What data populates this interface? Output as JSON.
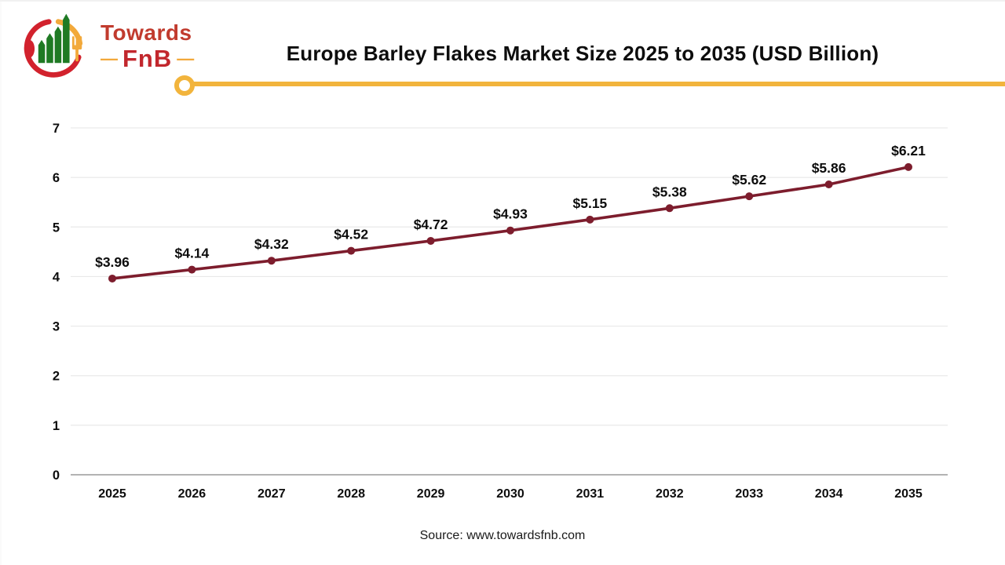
{
  "logo": {
    "line1": "Towards",
    "line2": "FnB",
    "dash": "—",
    "colors": {
      "red": "#c2272d",
      "gold": "#f2a93b",
      "green": "#1f7a24"
    }
  },
  "header": {
    "title": "Europe Barley Flakes Market Size 2025 to 2035 (USD Billion)"
  },
  "divider": {
    "color": "#f2b43c"
  },
  "chart_data": {
    "type": "line",
    "title": "Europe Barley Flakes Market Size 2025 to 2035 (USD Billion)",
    "categories": [
      "2025",
      "2026",
      "2027",
      "2028",
      "2029",
      "2030",
      "2031",
      "2032",
      "2033",
      "2034",
      "2035"
    ],
    "values": [
      3.96,
      4.14,
      4.32,
      4.52,
      4.72,
      4.93,
      5.15,
      5.38,
      5.62,
      5.86,
      6.21
    ],
    "point_labels": [
      "$3.96",
      "$4.14",
      "$4.32",
      "$4.52",
      "$4.72",
      "$4.93",
      "$5.15",
      "$5.38",
      "$5.62",
      "$5.86",
      "$6.21"
    ],
    "yticks": [
      "0",
      "1",
      "2",
      "3",
      "4",
      "5",
      "6",
      "7"
    ],
    "ylim": [
      0,
      7
    ],
    "grid": true,
    "legend": "none",
    "line_color": "#7d1d2d",
    "grid_color": "#e9e9e9",
    "axis_color": "#b3b3b3",
    "label_color": "#0d0d0d"
  },
  "footer": {
    "source": "Source: www.towardsfnb.com"
  }
}
